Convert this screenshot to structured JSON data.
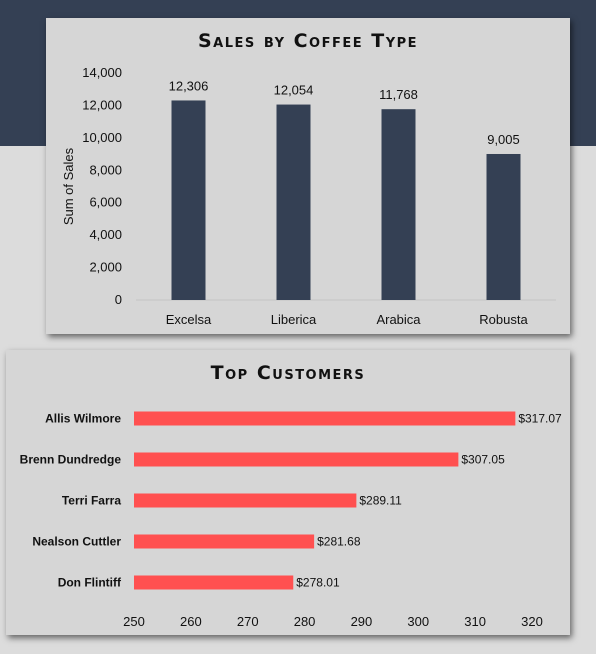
{
  "chart_data": [
    {
      "type": "bar",
      "title": "Sales by Coffee Type",
      "xlabel": "",
      "ylabel": "Sum of Sales",
      "categories": [
        "Excelsa",
        "Liberica",
        "Arabica",
        "Robusta"
      ],
      "values": [
        12306,
        12054,
        11768,
        9005
      ],
      "data_labels": [
        "12,306",
        "12,054",
        "11,768",
        "9,005"
      ],
      "ylim": [
        0,
        14000
      ],
      "yticks": [
        0,
        2000,
        4000,
        6000,
        8000,
        10000,
        12000,
        14000
      ],
      "ytick_labels": [
        "0",
        "2,000",
        "4,000",
        "6,000",
        "8,000",
        "10,000",
        "12,000",
        "14,000"
      ],
      "grid": false,
      "bar_color": "#344054"
    },
    {
      "type": "bar",
      "orientation": "horizontal",
      "title": "Top Customers",
      "categories": [
        "Allis Wilmore",
        "Brenn Dundredge",
        "Terri Farra",
        "Nealson Cuttler",
        "Don Flintiff"
      ],
      "values": [
        317.07,
        307.05,
        289.11,
        281.68,
        278.01
      ],
      "data_labels": [
        "$317.07",
        "$307.05",
        "$289.11",
        "$281.68",
        "$278.01"
      ],
      "xlim": [
        250,
        320
      ],
      "xticks": [
        250,
        260,
        270,
        280,
        290,
        300,
        310,
        320
      ],
      "xtick_labels": [
        "250",
        "260",
        "270",
        "280",
        "290",
        "300",
        "310",
        "320"
      ],
      "grid": false,
      "bar_color": "#ff5050"
    }
  ],
  "colors": {
    "banner": "#344054",
    "background": "#dcdcdc",
    "panel": "#d6d6d6"
  }
}
